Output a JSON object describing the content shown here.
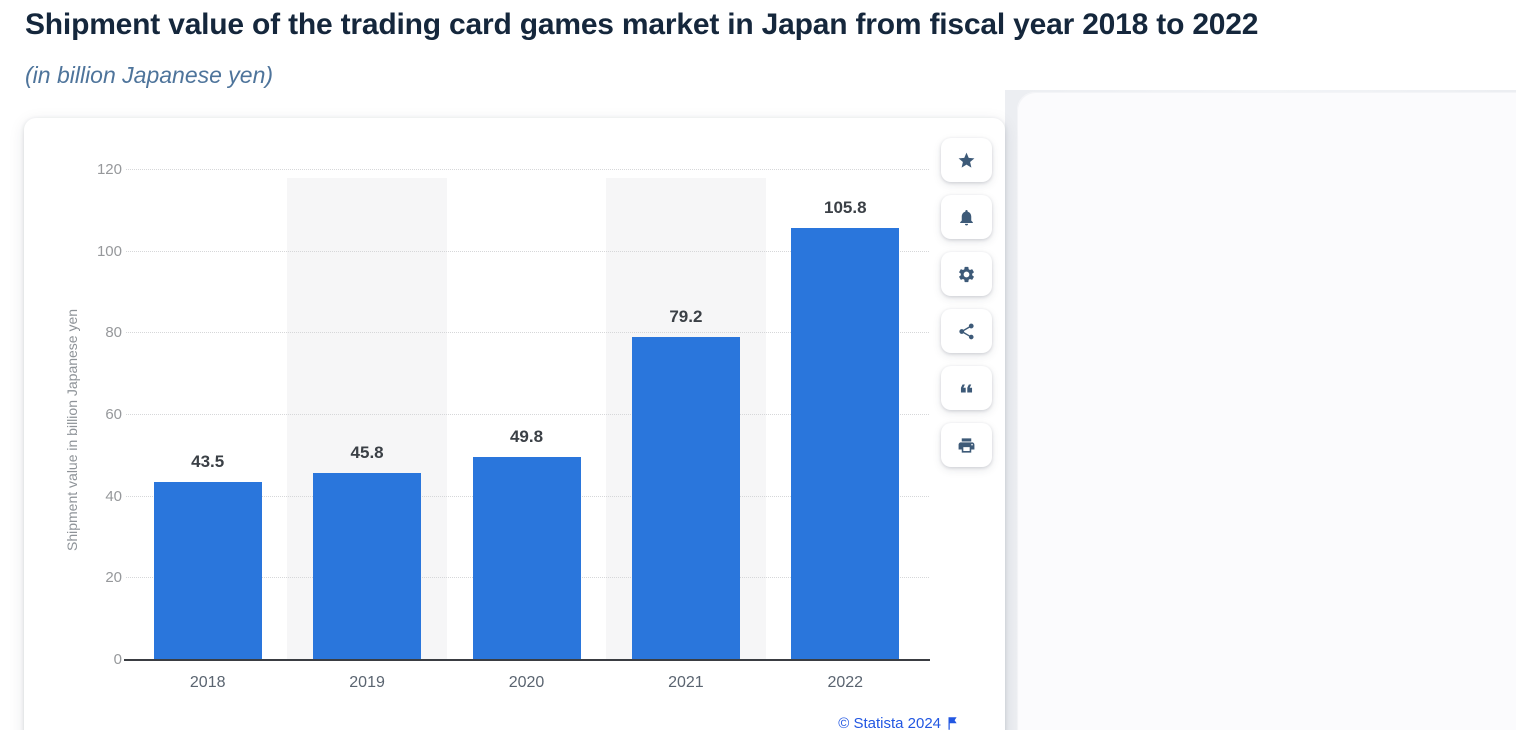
{
  "header": {
    "title": "Shipment value of the trading card games market in Japan from fiscal year 2018 to 2022",
    "subtitle": "(in billion Japanese yen)"
  },
  "chart_data": {
    "type": "bar",
    "title": "Shipment value of the trading card games market in Japan from fiscal year 2018 to 2022",
    "subtitle": "(in billion Japanese yen)",
    "categories": [
      "2018",
      "2019",
      "2020",
      "2021",
      "2022"
    ],
    "values": [
      43.5,
      45.8,
      49.8,
      79.2,
      105.8
    ],
    "xlabel": "",
    "ylabel": "Shipment value in billion Japanese yen",
    "ylim": [
      0,
      120
    ],
    "yticks": [
      0,
      20,
      40,
      60,
      80,
      100,
      120
    ],
    "grid": "horizontal-dotted",
    "legend": "none",
    "column_bands": "alternate-gray",
    "colors": {
      "bar": "#2a76dc",
      "band": "#f6f6f7",
      "gridline": "#d6d7d9",
      "axis_line": "#3a3d42",
      "tick_label": "#96989b",
      "category_label": "#5a6470",
      "value_label": "#3b4046"
    }
  },
  "toolbar": {
    "items": [
      {
        "name": "favorite-button",
        "icon": "star-icon"
      },
      {
        "name": "alert-button",
        "icon": "bell-icon"
      },
      {
        "name": "settings-button",
        "icon": "gear-icon"
      },
      {
        "name": "share-button",
        "icon": "share-icon"
      },
      {
        "name": "cite-button",
        "icon": "quote-icon"
      },
      {
        "name": "print-button",
        "icon": "print-icon"
      }
    ],
    "icon_color": "#3d5a78"
  },
  "attribution": {
    "text": "© Statista 2024",
    "icon": "statista-flag-icon",
    "color": "#2257e2"
  },
  "theme": {
    "title_color": "#15273c",
    "subtitle_color": "#4e749b",
    "card_background": "#ffffff",
    "panel_background": "#fbfbfd"
  }
}
